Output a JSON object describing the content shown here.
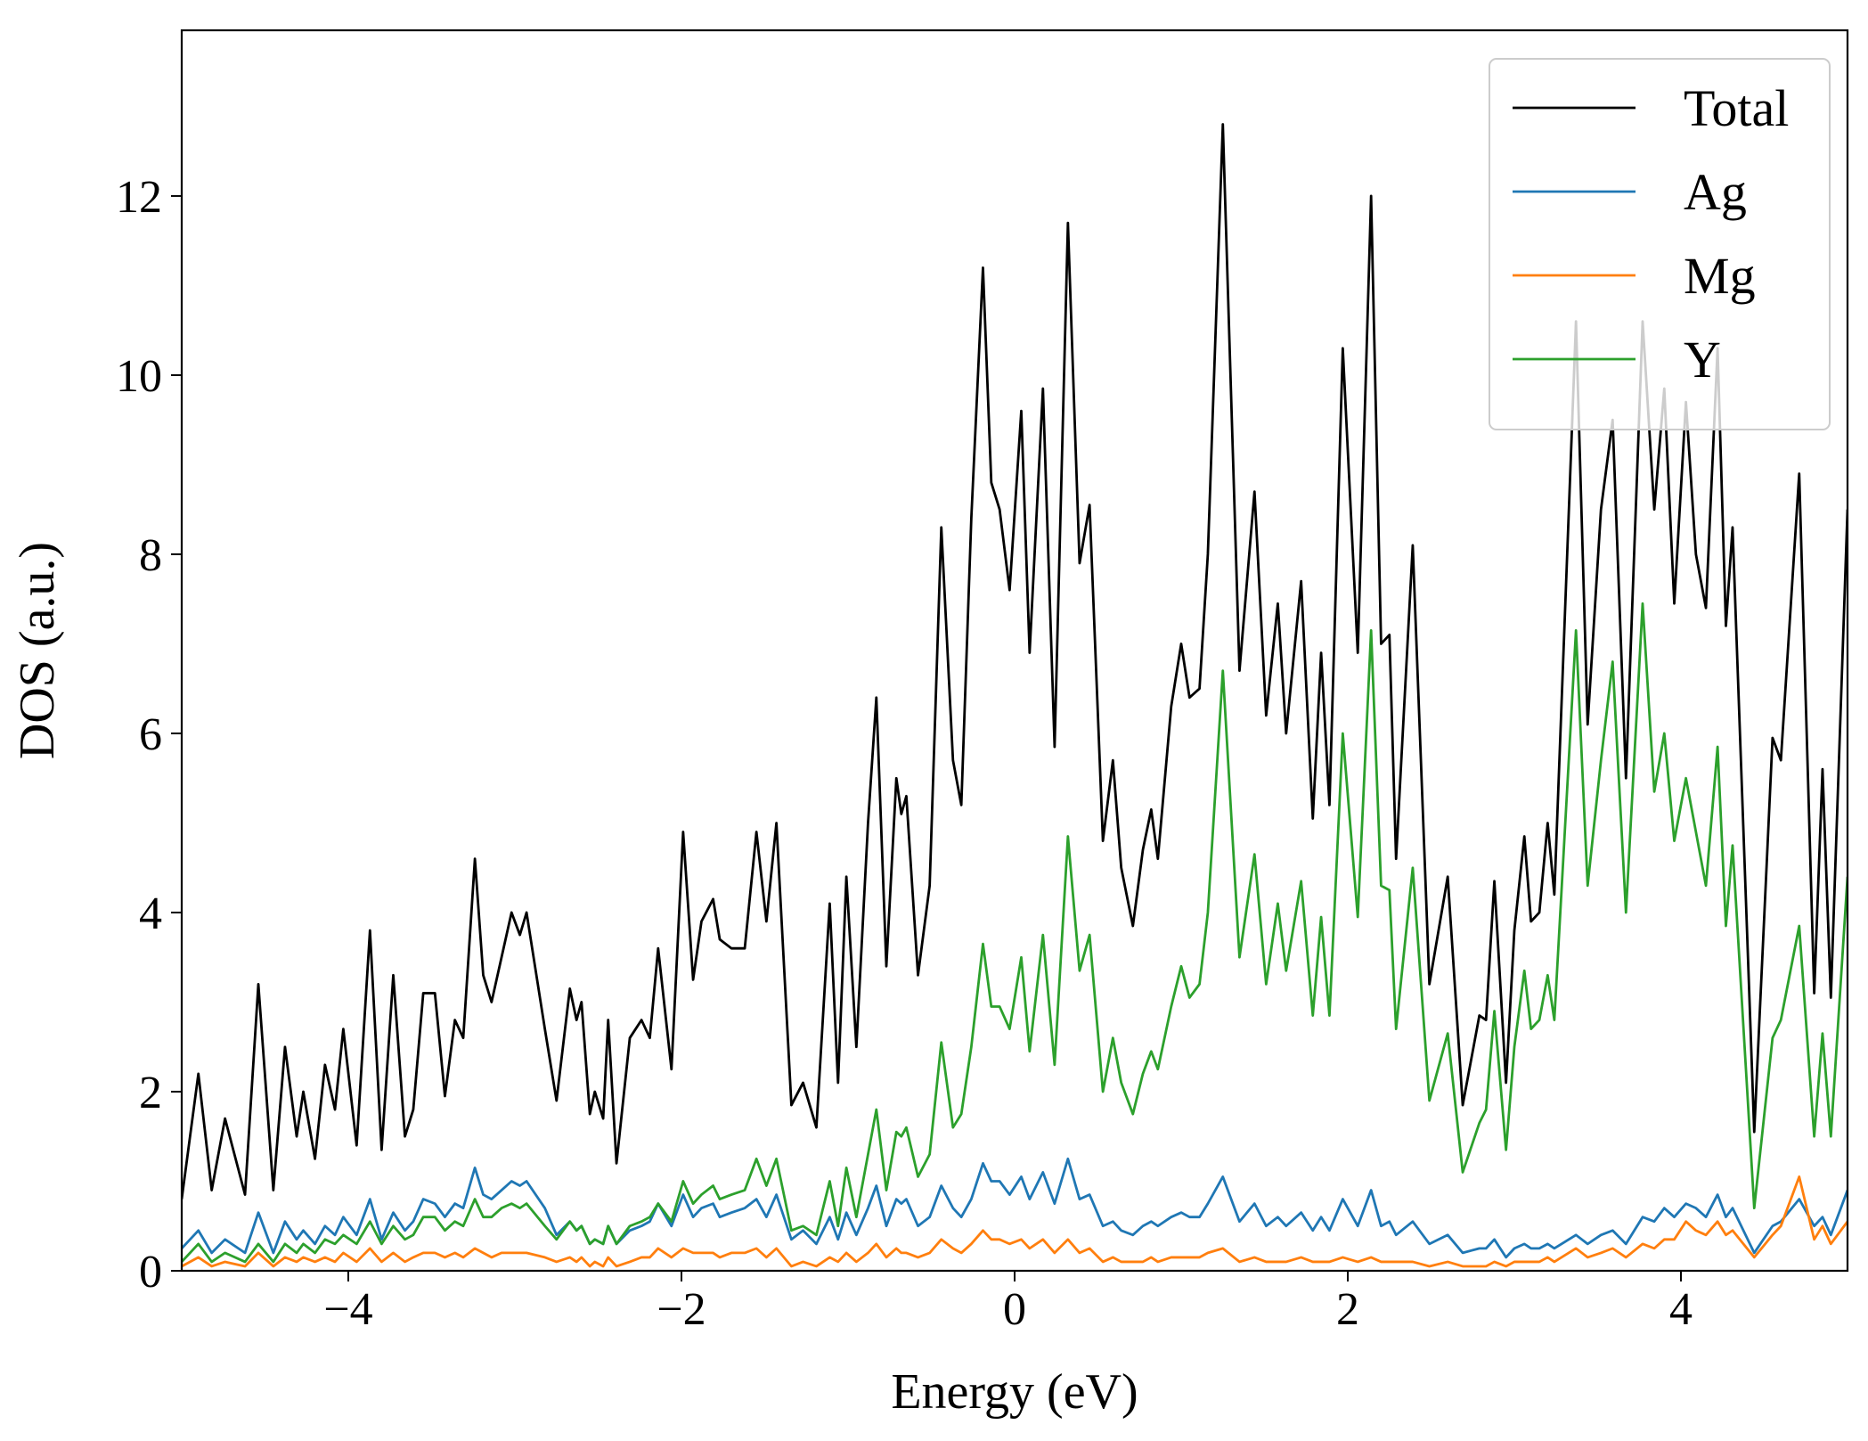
{
  "chart_data": {
    "type": "line",
    "xlabel": "Energy (eV)",
    "ylabel": "DOS (a.u.)",
    "xlim": [
      -5,
      5
    ],
    "ylim": [
      0,
      13.85
    ],
    "xticks": [
      {
        "value": -4,
        "label": "−4"
      },
      {
        "value": -2,
        "label": "−2"
      },
      0,
      2,
      4
    ],
    "yticks": [
      0,
      2,
      4,
      6,
      8,
      10,
      12
    ],
    "legend": "upper right",
    "grid": false,
    "x": [
      -5.0,
      -4.9,
      -4.82,
      -4.74,
      -4.62,
      -4.54,
      -4.45,
      -4.38,
      -4.31,
      -4.27,
      -4.2,
      -4.14,
      -4.08,
      -4.03,
      -3.95,
      -3.87,
      -3.8,
      -3.73,
      -3.66,
      -3.61,
      -3.55,
      -3.48,
      -3.42,
      -3.36,
      -3.31,
      -3.24,
      -3.19,
      -3.14,
      -3.08,
      -3.02,
      -2.97,
      -2.93,
      -2.82,
      -2.75,
      -2.67,
      -2.63,
      -2.6,
      -2.55,
      -2.52,
      -2.47,
      -2.44,
      -2.39,
      -2.31,
      -2.24,
      -2.19,
      -2.14,
      -2.06,
      -1.99,
      -1.93,
      -1.88,
      -1.81,
      -1.77,
      -1.7,
      -1.62,
      -1.55,
      -1.49,
      -1.43,
      -1.34,
      -1.27,
      -1.19,
      -1.11,
      -1.06,
      -1.01,
      -0.95,
      -0.88,
      -0.83,
      -0.77,
      -0.71,
      -0.68,
      -0.65,
      -0.58,
      -0.51,
      -0.44,
      -0.37,
      -0.32,
      -0.26,
      -0.19,
      -0.14,
      -0.09,
      -0.03,
      0.04,
      0.09,
      0.17,
      0.24,
      0.32,
      0.39,
      0.45,
      0.53,
      0.59,
      0.64,
      0.71,
      0.77,
      0.82,
      0.86,
      0.94,
      1.0,
      1.05,
      1.11,
      1.16,
      1.25,
      1.35,
      1.44,
      1.51,
      1.58,
      1.63,
      1.72,
      1.79,
      1.84,
      1.89,
      1.97,
      2.06,
      2.14,
      2.2,
      2.25,
      2.29,
      2.39,
      2.49,
      2.6,
      2.69,
      2.79,
      2.83,
      2.88,
      2.95,
      3.0,
      3.06,
      3.1,
      3.15,
      3.2,
      3.24,
      3.37,
      3.44,
      3.52,
      3.59,
      3.67,
      3.77,
      3.84,
      3.9,
      3.96,
      4.03,
      4.09,
      4.15,
      4.22,
      4.27,
      4.31,
      4.44,
      4.55,
      4.6,
      4.71,
      4.8,
      4.85,
      4.9,
      5.0
    ],
    "series": [
      {
        "name": "Total",
        "color": "#000000",
        "values": [
          0.8,
          2.2,
          0.9,
          1.7,
          0.85,
          3.2,
          0.9,
          2.5,
          1.5,
          2.0,
          1.25,
          2.3,
          1.8,
          2.7,
          1.4,
          3.8,
          1.35,
          3.3,
          1.5,
          1.8,
          3.1,
          3.1,
          1.95,
          2.8,
          2.6,
          4.6,
          3.3,
          3.0,
          3.5,
          4.0,
          3.75,
          4.0,
          2.7,
          1.9,
          3.15,
          2.8,
          3.0,
          1.75,
          2.0,
          1.7,
          2.8,
          1.2,
          2.6,
          2.8,
          2.6,
          3.6,
          2.25,
          4.9,
          3.25,
          3.9,
          4.15,
          3.7,
          3.6,
          3.6,
          4.9,
          3.9,
          5.0,
          1.85,
          2.1,
          1.6,
          4.1,
          2.1,
          4.4,
          2.5,
          5.0,
          6.4,
          3.4,
          5.5,
          5.1,
          5.3,
          3.3,
          4.3,
          8.3,
          5.7,
          5.2,
          8.4,
          11.2,
          8.8,
          8.5,
          7.6,
          9.6,
          6.9,
          9.85,
          5.85,
          11.7,
          7.9,
          8.55,
          4.8,
          5.7,
          4.5,
          3.85,
          4.7,
          5.15,
          4.6,
          6.3,
          7.0,
          6.4,
          6.5,
          8.0,
          12.8,
          6.7,
          8.7,
          6.2,
          7.45,
          6.0,
          7.7,
          5.05,
          6.9,
          5.2,
          10.3,
          6.9,
          12.0,
          7.0,
          7.1,
          4.6,
          8.1,
          3.2,
          4.4,
          1.85,
          2.85,
          2.8,
          4.35,
          2.1,
          3.8,
          4.85,
          3.9,
          4.0,
          5.0,
          4.2,
          10.6,
          6.1,
          8.5,
          9.5,
          5.5,
          10.6,
          8.5,
          9.85,
          7.45,
          9.7,
          8.0,
          7.4,
          10.3,
          7.2,
          8.3,
          1.55,
          5.95,
          5.7,
          8.9,
          3.1,
          5.6,
          3.05,
          8.5
        ]
      },
      {
        "name": "Ag",
        "color": "#1f77b4",
        "values": [
          0.25,
          0.45,
          0.2,
          0.35,
          0.2,
          0.65,
          0.2,
          0.55,
          0.35,
          0.45,
          0.3,
          0.5,
          0.4,
          0.6,
          0.4,
          0.8,
          0.35,
          0.65,
          0.45,
          0.55,
          0.8,
          0.75,
          0.6,
          0.75,
          0.7,
          1.15,
          0.85,
          0.8,
          0.9,
          1.0,
          0.95,
          1.0,
          0.7,
          0.4,
          0.55,
          0.45,
          0.5,
          0.3,
          0.35,
          0.3,
          0.5,
          0.3,
          0.45,
          0.5,
          0.55,
          0.75,
          0.5,
          0.85,
          0.6,
          0.7,
          0.75,
          0.6,
          0.65,
          0.7,
          0.8,
          0.6,
          0.85,
          0.35,
          0.45,
          0.3,
          0.6,
          0.35,
          0.65,
          0.4,
          0.7,
          0.95,
          0.5,
          0.8,
          0.75,
          0.8,
          0.5,
          0.6,
          0.95,
          0.7,
          0.6,
          0.8,
          1.2,
          1.0,
          1.0,
          0.85,
          1.05,
          0.8,
          1.1,
          0.75,
          1.25,
          0.8,
          0.85,
          0.5,
          0.55,
          0.45,
          0.4,
          0.5,
          0.55,
          0.5,
          0.6,
          0.65,
          0.6,
          0.6,
          0.75,
          1.05,
          0.55,
          0.75,
          0.5,
          0.6,
          0.5,
          0.65,
          0.45,
          0.6,
          0.45,
          0.8,
          0.5,
          0.9,
          0.5,
          0.55,
          0.4,
          0.55,
          0.3,
          0.4,
          0.2,
          0.25,
          0.25,
          0.35,
          0.15,
          0.25,
          0.3,
          0.25,
          0.25,
          0.3,
          0.25,
          0.4,
          0.3,
          0.4,
          0.45,
          0.3,
          0.6,
          0.55,
          0.7,
          0.6,
          0.75,
          0.7,
          0.6,
          0.85,
          0.6,
          0.7,
          0.2,
          0.5,
          0.55,
          0.8,
          0.5,
          0.6,
          0.4,
          0.9
        ]
      },
      {
        "name": "Mg",
        "color": "#ff7f0e",
        "values": [
          0.05,
          0.15,
          0.05,
          0.1,
          0.05,
          0.2,
          0.05,
          0.15,
          0.1,
          0.15,
          0.1,
          0.15,
          0.1,
          0.2,
          0.1,
          0.25,
          0.1,
          0.2,
          0.1,
          0.15,
          0.2,
          0.2,
          0.15,
          0.2,
          0.15,
          0.25,
          0.2,
          0.15,
          0.2,
          0.2,
          0.2,
          0.2,
          0.15,
          0.1,
          0.15,
          0.1,
          0.15,
          0.05,
          0.1,
          0.05,
          0.15,
          0.05,
          0.1,
          0.15,
          0.15,
          0.25,
          0.15,
          0.25,
          0.2,
          0.2,
          0.2,
          0.15,
          0.2,
          0.2,
          0.25,
          0.15,
          0.25,
          0.05,
          0.1,
          0.05,
          0.15,
          0.1,
          0.2,
          0.1,
          0.2,
          0.3,
          0.15,
          0.25,
          0.2,
          0.2,
          0.15,
          0.2,
          0.35,
          0.25,
          0.2,
          0.3,
          0.45,
          0.35,
          0.35,
          0.3,
          0.35,
          0.25,
          0.35,
          0.2,
          0.35,
          0.2,
          0.25,
          0.1,
          0.15,
          0.1,
          0.1,
          0.1,
          0.15,
          0.1,
          0.15,
          0.15,
          0.15,
          0.15,
          0.2,
          0.25,
          0.1,
          0.15,
          0.1,
          0.1,
          0.1,
          0.15,
          0.1,
          0.1,
          0.1,
          0.15,
          0.1,
          0.15,
          0.1,
          0.1,
          0.1,
          0.1,
          0.05,
          0.1,
          0.05,
          0.05,
          0.05,
          0.1,
          0.05,
          0.1,
          0.1,
          0.1,
          0.1,
          0.15,
          0.1,
          0.25,
          0.15,
          0.2,
          0.25,
          0.15,
          0.3,
          0.25,
          0.35,
          0.35,
          0.55,
          0.45,
          0.4,
          0.55,
          0.4,
          0.45,
          0.15,
          0.4,
          0.5,
          1.05,
          0.35,
          0.5,
          0.3,
          0.55
        ]
      },
      {
        "name": "Y",
        "color": "#2ca02c",
        "values": [
          0.1,
          0.3,
          0.1,
          0.2,
          0.1,
          0.3,
          0.1,
          0.3,
          0.2,
          0.3,
          0.2,
          0.35,
          0.3,
          0.4,
          0.3,
          0.55,
          0.3,
          0.5,
          0.35,
          0.4,
          0.6,
          0.6,
          0.45,
          0.55,
          0.5,
          0.8,
          0.6,
          0.6,
          0.7,
          0.75,
          0.7,
          0.75,
          0.5,
          0.35,
          0.55,
          0.45,
          0.5,
          0.3,
          0.35,
          0.3,
          0.5,
          0.3,
          0.5,
          0.55,
          0.6,
          0.75,
          0.55,
          1.0,
          0.75,
          0.85,
          0.95,
          0.8,
          0.85,
          0.9,
          1.25,
          0.95,
          1.25,
          0.45,
          0.5,
          0.4,
          1.0,
          0.5,
          1.15,
          0.6,
          1.3,
          1.8,
          0.9,
          1.55,
          1.5,
          1.6,
          1.05,
          1.3,
          2.55,
          1.6,
          1.75,
          2.5,
          3.65,
          2.95,
          2.95,
          2.7,
          3.5,
          2.45,
          3.75,
          2.3,
          4.85,
          3.35,
          3.75,
          2.0,
          2.6,
          2.1,
          1.75,
          2.2,
          2.45,
          2.25,
          2.95,
          3.4,
          3.05,
          3.2,
          4.0,
          6.7,
          3.5,
          4.65,
          3.2,
          4.1,
          3.35,
          4.35,
          2.85,
          3.95,
          2.85,
          6.0,
          3.95,
          7.15,
          4.3,
          4.25,
          2.7,
          4.5,
          1.9,
          2.65,
          1.1,
          1.65,
          1.8,
          2.9,
          1.35,
          2.5,
          3.35,
          2.7,
          2.8,
          3.3,
          2.8,
          7.15,
          4.3,
          5.7,
          6.8,
          4.0,
          7.45,
          5.35,
          6.0,
          4.8,
          5.5,
          4.9,
          4.3,
          5.85,
          3.85,
          4.75,
          0.7,
          2.6,
          2.8,
          3.85,
          1.5,
          2.65,
          1.5,
          4.4
        ]
      }
    ]
  }
}
